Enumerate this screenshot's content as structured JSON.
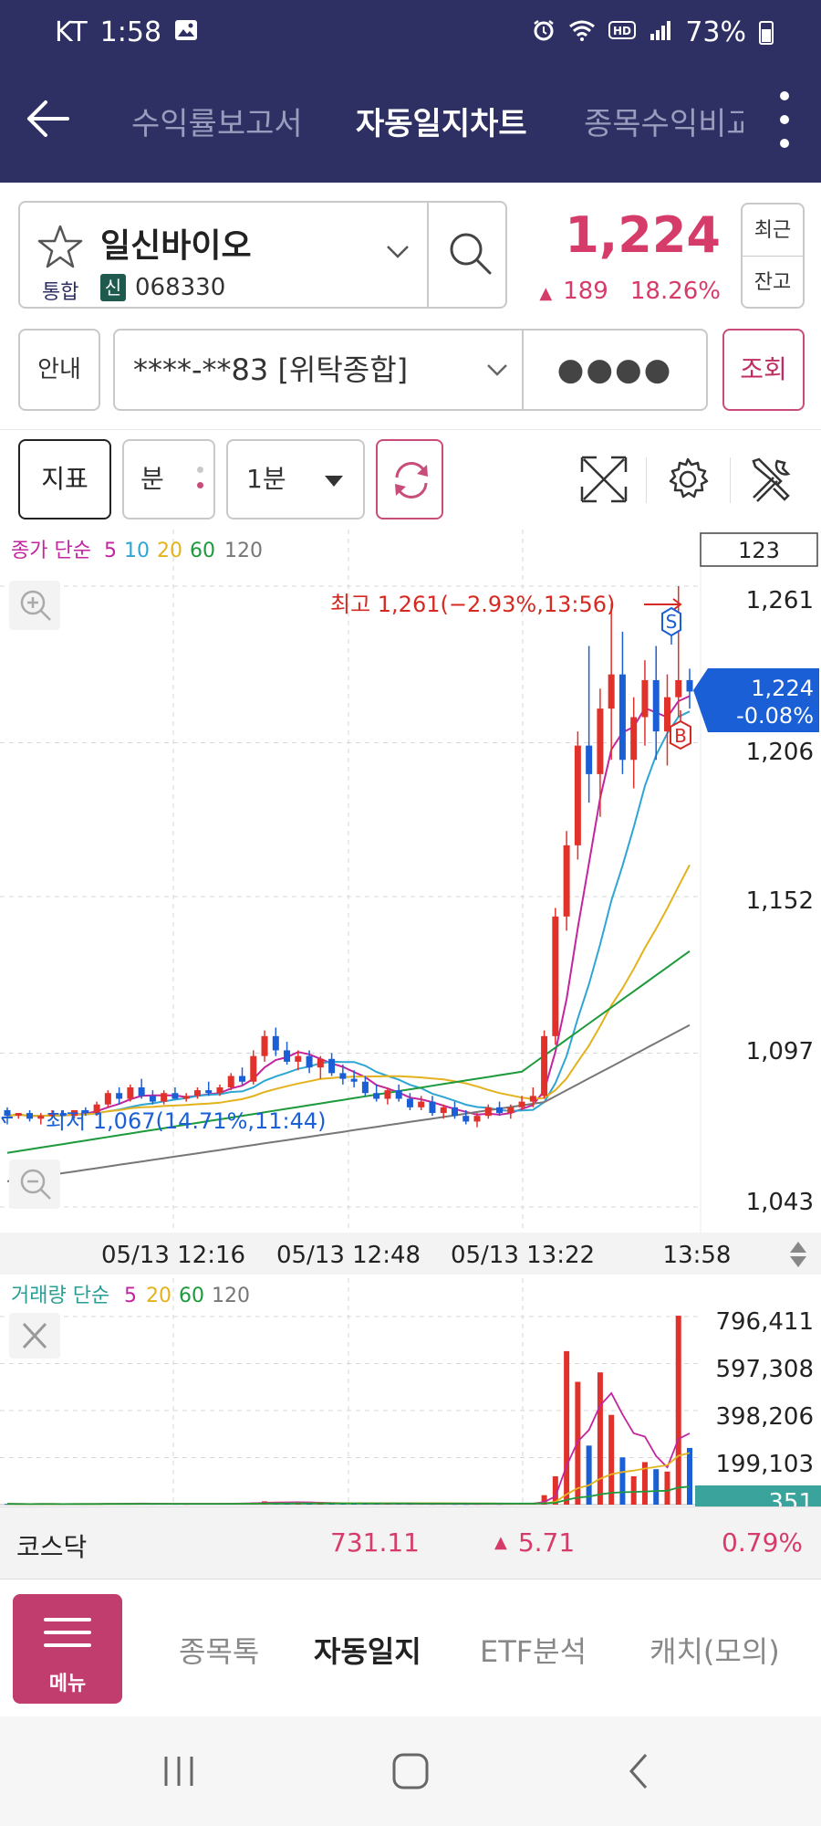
{
  "status_bar": {
    "carrier": "KT",
    "time": "1:58",
    "battery": "73%"
  },
  "header": {
    "tabs": [
      "수익률보고서",
      "자동일지차트",
      "종목수익비교"
    ],
    "active_tab": 1
  },
  "stock": {
    "name": "일신바이오",
    "market": "통합",
    "credit_badge": "신",
    "code": "068330",
    "price": "1,224",
    "change": "189",
    "change_pct": "18.26%",
    "recent_label": "최근",
    "balance_label": "잔고"
  },
  "account": {
    "guide_label": "안내",
    "account_value": "****-**83 [위탁종합]",
    "password_mask": "●●●●",
    "query_label": "조회"
  },
  "toolbar": {
    "indicator_label": "지표",
    "minute_label": "분",
    "period_value": "1분"
  },
  "colors": {
    "header_bg": "#2e2f63",
    "up": "#e0312b",
    "down": "#1a5fd6",
    "ma5": "#c2259e",
    "ma10": "#2ea6d3",
    "ma20": "#e3b21c",
    "ma60": "#1d9a3b",
    "ma120": "#777777",
    "accent": "#c03d6e"
  },
  "chart_data": {
    "type": "candlestick",
    "legend": {
      "prefix": "종가 단순",
      "periods": [
        "5",
        "10",
        "20",
        "60",
        "120"
      ]
    },
    "count_box": "123",
    "y_ticks": [
      "1,261",
      "1,206",
      "1,152",
      "1,097",
      "1,043"
    ],
    "y_range": [
      1043,
      1261
    ],
    "x_ticks": [
      "05/13 12:16",
      "05/13 12:48",
      "05/13 13:22",
      "13:58"
    ],
    "high_annotation": "최고 1,261(−2.93%,13:56)",
    "low_annotation": "최저 1,067(14.71%,11:44)",
    "current_price_tag": {
      "price": "1,224",
      "pct": "-0.08%"
    },
    "trade_markers": {
      "sell": "S",
      "buy": "B"
    },
    "candles": [
      [
        1077,
        1078,
        1072,
        1075
      ],
      [
        1075,
        1076,
        1074,
        1076
      ],
      [
        1076,
        1077,
        1073,
        1074
      ],
      [
        1074,
        1076,
        1072,
        1075
      ],
      [
        1075,
        1077,
        1074,
        1076
      ],
      [
        1076,
        1077,
        1075,
        1075
      ],
      [
        1075,
        1077,
        1074,
        1077
      ],
      [
        1077,
        1078,
        1075,
        1076
      ],
      [
        1076,
        1080,
        1075,
        1079
      ],
      [
        1079,
        1084,
        1078,
        1083
      ],
      [
        1083,
        1085,
        1079,
        1081
      ],
      [
        1081,
        1086,
        1080,
        1085
      ],
      [
        1085,
        1088,
        1081,
        1082
      ],
      [
        1082,
        1084,
        1079,
        1080
      ],
      [
        1080,
        1084,
        1079,
        1083
      ],
      [
        1083,
        1085,
        1081,
        1081
      ],
      [
        1081,
        1083,
        1080,
        1082
      ],
      [
        1082,
        1085,
        1081,
        1084
      ],
      [
        1084,
        1087,
        1082,
        1083
      ],
      [
        1083,
        1086,
        1082,
        1085
      ],
      [
        1085,
        1090,
        1084,
        1089
      ],
      [
        1089,
        1092,
        1086,
        1087
      ],
      [
        1087,
        1098,
        1086,
        1096
      ],
      [
        1096,
        1105,
        1094,
        1103
      ],
      [
        1103,
        1106,
        1096,
        1098
      ],
      [
        1098,
        1101,
        1093,
        1094
      ],
      [
        1094,
        1098,
        1091,
        1096
      ],
      [
        1096,
        1098,
        1090,
        1092
      ],
      [
        1092,
        1096,
        1088,
        1095
      ],
      [
        1095,
        1097,
        1089,
        1090
      ],
      [
        1090,
        1093,
        1086,
        1088
      ],
      [
        1088,
        1091,
        1085,
        1087
      ],
      [
        1087,
        1089,
        1082,
        1083
      ],
      [
        1083,
        1086,
        1080,
        1081
      ],
      [
        1081,
        1085,
        1079,
        1084
      ],
      [
        1084,
        1086,
        1080,
        1081
      ],
      [
        1081,
        1083,
        1077,
        1078
      ],
      [
        1078,
        1082,
        1077,
        1080
      ],
      [
        1080,
        1082,
        1075,
        1076
      ],
      [
        1076,
        1079,
        1074,
        1078
      ],
      [
        1078,
        1080,
        1074,
        1075
      ],
      [
        1075,
        1077,
        1072,
        1073
      ],
      [
        1073,
        1076,
        1071,
        1075
      ],
      [
        1075,
        1079,
        1074,
        1078
      ],
      [
        1078,
        1080,
        1075,
        1076
      ],
      [
        1076,
        1079,
        1074,
        1078
      ],
      [
        1078,
        1082,
        1077,
        1080
      ],
      [
        1080,
        1085,
        1078,
        1082
      ],
      [
        1082,
        1105,
        1081,
        1103
      ],
      [
        1103,
        1148,
        1100,
        1145
      ],
      [
        1145,
        1175,
        1140,
        1170
      ],
      [
        1170,
        1210,
        1165,
        1205
      ],
      [
        1205,
        1240,
        1185,
        1195
      ],
      [
        1195,
        1225,
        1180,
        1218
      ],
      [
        1218,
        1255,
        1200,
        1230
      ],
      [
        1230,
        1245,
        1195,
        1200
      ],
      [
        1200,
        1222,
        1190,
        1215
      ],
      [
        1215,
        1235,
        1205,
        1228
      ],
      [
        1228,
        1240,
        1200,
        1210
      ],
      [
        1210,
        1230,
        1198,
        1222
      ],
      [
        1222,
        1261,
        1215,
        1228
      ],
      [
        1228,
        1232,
        1218,
        1224
      ]
    ]
  },
  "volume_data": {
    "legend": {
      "prefix": "거래량 단순",
      "periods": [
        "5",
        "20",
        "60",
        "120"
      ]
    },
    "y_ticks": [
      "796,411",
      "597,308",
      "398,206",
      "199,103"
    ],
    "y_max": 796411,
    "current_tag": "351",
    "values": [
      3000,
      2500,
      2000,
      2800,
      2400,
      2200,
      3100,
      2600,
      4000,
      5200,
      4500,
      4800,
      3900,
      3600,
      4200,
      3500,
      3300,
      4100,
      3800,
      4400,
      6000,
      5200,
      9000,
      14000,
      11000,
      9000,
      7500,
      6200,
      6800,
      5600,
      5000,
      4400,
      4100,
      3700,
      4300,
      3900,
      3500,
      4000,
      3300,
      3600,
      3100,
      2900,
      3400,
      3800,
      3200,
      3600,
      4500,
      5200,
      40000,
      120000,
      650000,
      520000,
      250000,
      560000,
      380000,
      200000,
      120000,
      180000,
      150000,
      140000,
      800000,
      240000
    ]
  },
  "market_index": {
    "name": "코스닥",
    "value": "731.11",
    "change": "5.71",
    "pct": "0.79%"
  },
  "bottom_nav": {
    "menu_label": "메뉴",
    "items": [
      "종목톡",
      "자동일지",
      "ETF분석",
      "캐치(모의)"
    ],
    "active_index": 1
  }
}
